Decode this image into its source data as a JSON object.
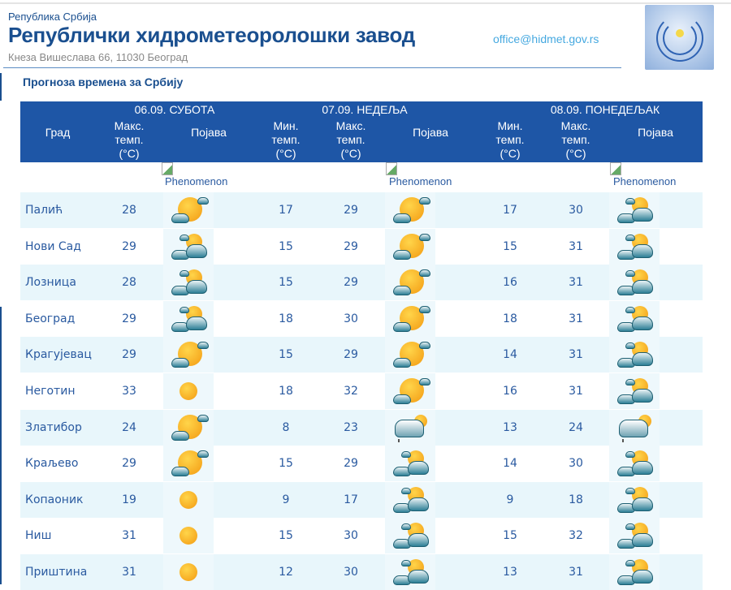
{
  "header": {
    "country": "Република Србија",
    "title": "Републички хидрометеоролошки завод",
    "address": "Кнеза Вишеслава 66, 11030  Београд",
    "email": "office@hidmet.gov.rs"
  },
  "subtitle": "Прогноза времена за Србију",
  "table": {
    "city_header": "Град",
    "days": [
      {
        "label": "06.09. СУБОТА",
        "cols": [
          "Макс. темп. (°C)",
          "Појава"
        ]
      },
      {
        "label": "07.09. НЕДЕЉА",
        "cols": [
          "Мин. темп. (°C)",
          "Макс. темп. (°C)",
          "Појава"
        ]
      },
      {
        "label": "08.09. ПОНЕДЕЉАК",
        "cols": [
          "Мин. темп. (°C)",
          "Макс. темп. (°C)",
          "Појава"
        ]
      }
    ],
    "broken_image_alt": "Phenomenon",
    "rows": [
      {
        "city": "Палић",
        "d1_max": "28",
        "d1_icon": "mostly-sunny",
        "d2_min": "17",
        "d2_max": "29",
        "d2_icon": "mostly-sunny",
        "d3_min": "17",
        "d3_max": "30",
        "d3_icon": "partly-cloudy"
      },
      {
        "city": "Нови Сад",
        "d1_max": "29",
        "d1_icon": "partly-cloudy",
        "d2_min": "15",
        "d2_max": "29",
        "d2_icon": "mostly-sunny",
        "d3_min": "15",
        "d3_max": "31",
        "d3_icon": "partly-cloudy"
      },
      {
        "city": "Лозница",
        "d1_max": "28",
        "d1_icon": "partly-cloudy",
        "d2_min": "15",
        "d2_max": "29",
        "d2_icon": "mostly-sunny",
        "d3_min": "16",
        "d3_max": "31",
        "d3_icon": "partly-cloudy"
      },
      {
        "city": "Београд",
        "d1_max": "29",
        "d1_icon": "partly-cloudy",
        "d2_min": "18",
        "d2_max": "30",
        "d2_icon": "mostly-sunny",
        "d3_min": "18",
        "d3_max": "31",
        "d3_icon": "partly-cloudy"
      },
      {
        "city": "Крагујевац",
        "d1_max": "29",
        "d1_icon": "mostly-sunny",
        "d2_min": "15",
        "d2_max": "29",
        "d2_icon": "mostly-sunny",
        "d3_min": "14",
        "d3_max": "31",
        "d3_icon": "partly-cloudy"
      },
      {
        "city": "Неготин",
        "d1_max": "33",
        "d1_icon": "sunny",
        "d2_min": "18",
        "d2_max": "32",
        "d2_icon": "mostly-sunny",
        "d3_min": "16",
        "d3_max": "31",
        "d3_icon": "partly-cloudy"
      },
      {
        "city": "Златибор",
        "d1_max": "24",
        "d1_icon": "mostly-sunny",
        "d2_min": "8",
        "d2_max": "23",
        "d2_icon": "cloudy-light-rain",
        "d3_min": "13",
        "d3_max": "24",
        "d3_icon": "cloudy-light-rain"
      },
      {
        "city": "Краљево",
        "d1_max": "29",
        "d1_icon": "mostly-sunny",
        "d2_min": "15",
        "d2_max": "29",
        "d2_icon": "partly-cloudy",
        "d3_min": "14",
        "d3_max": "30",
        "d3_icon": "partly-cloudy"
      },
      {
        "city": "Копаоник",
        "d1_max": "19",
        "d1_icon": "sunny",
        "d2_min": "9",
        "d2_max": "17",
        "d2_icon": "partly-cloudy",
        "d3_min": "9",
        "d3_max": "18",
        "d3_icon": "partly-cloudy"
      },
      {
        "city": "Ниш",
        "d1_max": "31",
        "d1_icon": "sunny",
        "d2_min": "15",
        "d2_max": "30",
        "d2_icon": "partly-cloudy",
        "d3_min": "15",
        "d3_max": "32",
        "d3_icon": "partly-cloudy"
      },
      {
        "city": "Приштина",
        "d1_max": "31",
        "d1_icon": "sunny",
        "d2_min": "12",
        "d2_max": "30",
        "d2_icon": "partly-cloudy",
        "d3_min": "13",
        "d3_max": "31",
        "d3_icon": "partly-cloudy"
      }
    ]
  },
  "colors": {
    "brand": "#1a4f8f",
    "header_bg": "#1e56a6",
    "row_alt": "#e8f6fb",
    "link": "#46a9e0"
  }
}
